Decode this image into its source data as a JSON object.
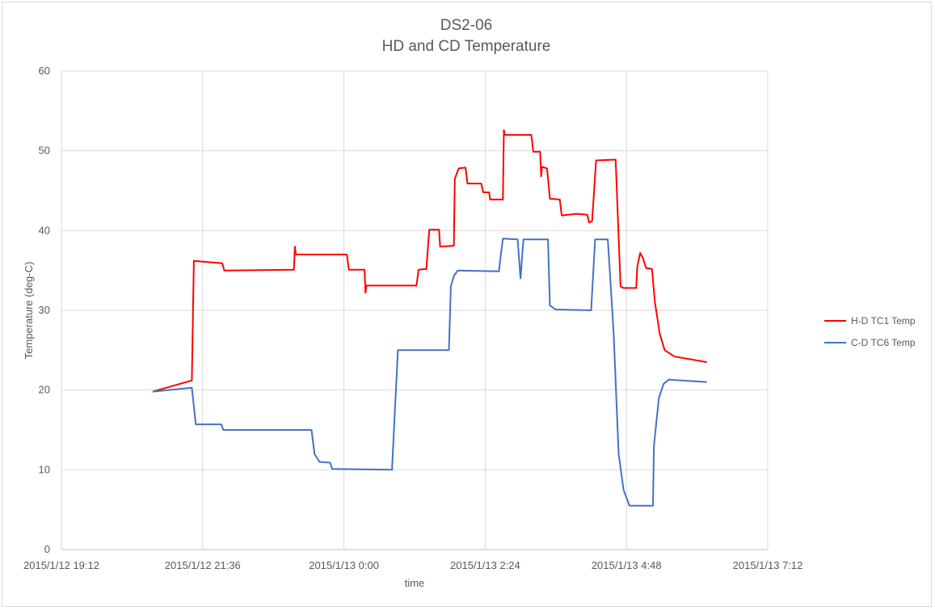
{
  "chart_data": {
    "type": "line",
    "title": "DS2-06",
    "subtitle": "HD and CD Temperature",
    "xlabel": "time",
    "ylabel": "Temperature (deg-C)",
    "xlim": [
      "2015/1/12 19:12",
      "2015/1/13 7:12"
    ],
    "ylim": [
      0,
      60
    ],
    "x_ticks": [
      "2015/1/12 19:12",
      "2015/1/12 21:36",
      "2015/1/13 0:00",
      "2015/1/13 2:24",
      "2015/1/13 4:48",
      "2015/1/13 7:12"
    ],
    "y_ticks": [
      "0",
      "10",
      "20",
      "30",
      "40",
      "50",
      "60"
    ],
    "grid": true,
    "legend": "right",
    "series": [
      {
        "name": "H-D TC1 Temp",
        "color": "#FF0000",
        "points": [
          [
            "2015/1/12 20:45",
            19.8
          ],
          [
            "2015/1/12 21:25",
            21.2
          ],
          [
            "2015/1/12 21:27",
            36.2
          ],
          [
            "2015/1/12 21:56",
            35.9
          ],
          [
            "2015/1/12 21:58",
            35.0
          ],
          [
            "2015/1/12 23:09",
            35.1
          ],
          [
            "2015/1/12 23:10",
            38.0
          ],
          [
            "2015/1/12 23:11",
            37.0
          ],
          [
            "2015/1/13 0:03",
            37.0
          ],
          [
            "2015/1/13 0:05",
            35.1
          ],
          [
            "2015/1/13 0:21",
            35.1
          ],
          [
            "2015/1/13 0:22",
            32.2
          ],
          [
            "2015/1/13 0:23",
            33.1
          ],
          [
            "2015/1/13 1:14",
            33.1
          ],
          [
            "2015/1/13 1:16",
            35.1
          ],
          [
            "2015/1/13 1:24",
            35.2
          ],
          [
            "2015/1/13 1:27",
            40.1
          ],
          [
            "2015/1/13 1:37",
            40.1
          ],
          [
            "2015/1/13 1:38",
            38.0
          ],
          [
            "2015/1/13 1:52",
            38.1
          ],
          [
            "2015/1/13 1:53",
            46.5
          ],
          [
            "2015/1/13 1:57",
            47.8
          ],
          [
            "2015/1/13 2:04",
            47.9
          ],
          [
            "2015/1/13 2:06",
            45.9
          ],
          [
            "2015/1/13 2:20",
            45.9
          ],
          [
            "2015/1/13 2:22",
            44.8
          ],
          [
            "2015/1/13 2:28",
            44.8
          ],
          [
            "2015/1/13 2:29",
            43.9
          ],
          [
            "2015/1/13 2:42",
            43.9
          ],
          [
            "2015/1/13 2:43",
            52.6
          ],
          [
            "2015/1/13 2:44",
            52.0
          ],
          [
            "2015/1/13 3:11",
            52.0
          ],
          [
            "2015/1/13 3:13",
            49.9
          ],
          [
            "2015/1/13 3:20",
            49.9
          ],
          [
            "2015/1/13 3:21",
            46.8
          ],
          [
            "2015/1/13 3:22",
            48.0
          ],
          [
            "2015/1/13 3:27",
            47.8
          ],
          [
            "2015/1/13 3:30",
            44.0
          ],
          [
            "2015/1/13 3:40",
            43.9
          ],
          [
            "2015/1/13 3:42",
            41.9
          ],
          [
            "2015/1/13 3:57",
            42.1
          ],
          [
            "2015/1/13 4:08",
            42.0
          ],
          [
            "2015/1/13 4:10",
            41.0
          ],
          [
            "2015/1/13 4:13",
            41.2
          ],
          [
            "2015/1/13 4:17",
            48.8
          ],
          [
            "2015/1/13 4:37",
            48.9
          ],
          [
            "2015/1/13 4:42",
            33.0
          ],
          [
            "2015/1/13 4:45",
            32.8
          ],
          [
            "2015/1/13 4:58",
            32.8
          ],
          [
            "2015/1/13 4:59",
            35.5
          ],
          [
            "2015/1/13 5:02",
            37.2
          ],
          [
            "2015/1/13 5:05",
            36.5
          ],
          [
            "2015/1/13 5:08",
            35.3
          ],
          [
            "2015/1/13 5:14",
            35.2
          ],
          [
            "2015/1/13 5:17",
            31.0
          ],
          [
            "2015/1/13 5:22",
            27.0
          ],
          [
            "2015/1/13 5:27",
            25.0
          ],
          [
            "2015/1/13 5:37",
            24.2
          ],
          [
            "2015/1/13 6:10",
            23.5
          ]
        ]
      },
      {
        "name": "C-D TC6 Temp",
        "color": "#4472C4",
        "points": [
          [
            "2015/1/12 20:45",
            19.8
          ],
          [
            "2015/1/12 21:25",
            20.3
          ],
          [
            "2015/1/12 21:29",
            15.7
          ],
          [
            "2015/1/12 21:55",
            15.7
          ],
          [
            "2015/1/12 21:57",
            15.0
          ],
          [
            "2015/1/12 23:27",
            15.0
          ],
          [
            "2015/1/12 23:30",
            12.0
          ],
          [
            "2015/1/12 23:35",
            11.0
          ],
          [
            "2015/1/12 23:46",
            10.9
          ],
          [
            "2015/1/12 23:48",
            10.1
          ],
          [
            "2015/1/13 0:49",
            10.0
          ],
          [
            "2015/1/13 0:51",
            15.0
          ],
          [
            "2015/1/13 0:55",
            25.0
          ],
          [
            "2015/1/13 1:47",
            25.0
          ],
          [
            "2015/1/13 1:49",
            33.0
          ],
          [
            "2015/1/13 1:52",
            34.3
          ],
          [
            "2015/1/13 1:56",
            35.0
          ],
          [
            "2015/1/13 2:38",
            34.9
          ],
          [
            "2015/1/13 2:40",
            37.0
          ],
          [
            "2015/1/13 2:42",
            39.0
          ],
          [
            "2015/1/13 2:57",
            38.9
          ],
          [
            "2015/1/13 3:00",
            34.0
          ],
          [
            "2015/1/13 3:03",
            38.9
          ],
          [
            "2015/1/13 3:28",
            38.9
          ],
          [
            "2015/1/13 3:30",
            30.6
          ],
          [
            "2015/1/13 3:36",
            30.1
          ],
          [
            "2015/1/13 4:12",
            30.0
          ],
          [
            "2015/1/13 4:16",
            38.9
          ],
          [
            "2015/1/13 4:29",
            38.9
          ],
          [
            "2015/1/13 4:32",
            33.0
          ],
          [
            "2015/1/13 4:35",
            27.0
          ],
          [
            "2015/1/13 4:40",
            12.0
          ],
          [
            "2015/1/13 4:45",
            7.5
          ],
          [
            "2015/1/13 4:51",
            5.5
          ],
          [
            "2015/1/13 5:15",
            5.5
          ],
          [
            "2015/1/13 5:16",
            13.0
          ],
          [
            "2015/1/13 5:21",
            19.0
          ],
          [
            "2015/1/13 5:26",
            20.8
          ],
          [
            "2015/1/13 5:31",
            21.3
          ],
          [
            "2015/1/13 6:10",
            21.0
          ]
        ]
      }
    ]
  }
}
